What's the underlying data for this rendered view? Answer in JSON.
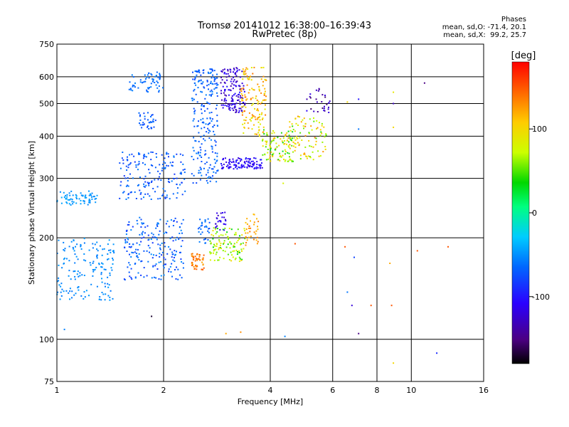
{
  "header": {
    "title": "Tromsø 20141012 16:38:00–16:39:43",
    "subtitle": "RwPretec (8p)"
  },
  "stats": {
    "heading": "Phases",
    "line_o": "mean, sd,O: -71.4, 20.1",
    "line_x": "mean, sd,X:  99.2, 25.7"
  },
  "chart_data": {
    "type": "scatter",
    "xlabel": "Frequency [MHz]",
    "ylabel": "Stationary phase Virtual Height [km]",
    "xscale": "log",
    "yscale": "log",
    "xlim": [
      1,
      16
    ],
    "ylim": [
      75,
      750
    ],
    "x_ticks": [
      1,
      2,
      4,
      6,
      8,
      10,
      16
    ],
    "x_tick_labels": [
      "1",
      "2",
      "4",
      "6",
      "8",
      "10",
      "16"
    ],
    "y_ticks": [
      75,
      100,
      200,
      300,
      400,
      500,
      600,
      750
    ],
    "y_tick_labels": [
      "75",
      "100",
      "200",
      "300",
      "400",
      "500",
      "600",
      "750"
    ],
    "grid": true,
    "colorbar": {
      "label": "[deg]",
      "range": [
        -180,
        180
      ],
      "ticks": [
        100,
        0,
        -100
      ],
      "tick_labels": [
        "100",
        "0",
        "-100"
      ]
    },
    "clusters": [
      {
        "freq": [
          1.0,
          1.3
        ],
        "height": [
          250,
          275
        ],
        "phase": [
          -55,
          -40
        ],
        "n": 70
      },
      {
        "freq": [
          1.0,
          1.45
        ],
        "height": [
          130,
          200
        ],
        "phase": [
          -60,
          -45
        ],
        "n": 160
      },
      {
        "freq": [
          1.55,
          2.3
        ],
        "height": [
          150,
          230
        ],
        "phase": [
          -85,
          -50
        ],
        "n": 200
      },
      {
        "freq": [
          1.5,
          2.3
        ],
        "height": [
          260,
          360
        ],
        "phase": [
          -85,
          -55
        ],
        "n": 170
      },
      {
        "freq": [
          1.6,
          2.0
        ],
        "height": [
          540,
          620
        ],
        "phase": [
          -70,
          -55
        ],
        "n": 60
      },
      {
        "freq": [
          1.7,
          1.9
        ],
        "height": [
          420,
          470
        ],
        "phase": [
          -80,
          -60
        ],
        "n": 35
      },
      {
        "freq": [
          2.4,
          2.85
        ],
        "height": [
          290,
          640
        ],
        "phase": [
          -80,
          -55
        ],
        "n": 230
      },
      {
        "freq": [
          2.9,
          3.4
        ],
        "height": [
          470,
          640
        ],
        "phase": [
          -140,
          -100
        ],
        "n": 140
      },
      {
        "freq": [
          3.3,
          3.9
        ],
        "height": [
          400,
          640
        ],
        "phase": [
          80,
          140
        ],
        "n": 140
      },
      {
        "freq": [
          2.9,
          3.8
        ],
        "height": [
          320,
          345
        ],
        "phase": [
          -120,
          -95
        ],
        "n": 110
      },
      {
        "freq": [
          3.8,
          4.7
        ],
        "height": [
          335,
          420
        ],
        "phase": [
          30,
          120
        ],
        "n": 110
      },
      {
        "freq": [
          4.5,
          5.8
        ],
        "height": [
          340,
          460
        ],
        "phase": [
          40,
          140
        ],
        "n": 90
      },
      {
        "freq": [
          5.0,
          5.9
        ],
        "height": [
          470,
          560
        ],
        "phase": [
          -160,
          -110
        ],
        "n": 30
      },
      {
        "freq": [
          2.4,
          2.6
        ],
        "height": [
          160,
          180
        ],
        "phase": [
          120,
          150
        ],
        "n": 50
      },
      {
        "freq": [
          2.7,
          3.4
        ],
        "height": [
          170,
          215
        ],
        "phase": [
          30,
          100
        ],
        "n": 110
      },
      {
        "freq": [
          2.8,
          3.0
        ],
        "height": [
          210,
          240
        ],
        "phase": [
          -130,
          -100
        ],
        "n": 25
      },
      {
        "freq": [
          2.5,
          2.7
        ],
        "height": [
          190,
          230
        ],
        "phase": [
          -75,
          -55
        ],
        "n": 30
      },
      {
        "freq": [
          3.4,
          3.7
        ],
        "height": [
          190,
          235
        ],
        "phase": [
          110,
          140
        ],
        "n": 35
      }
    ],
    "outliers": [
      {
        "f": 1.05,
        "h": 107,
        "p": -55
      },
      {
        "f": 1.85,
        "h": 117,
        "p": -170
      },
      {
        "f": 3.0,
        "h": 104,
        "p": 120
      },
      {
        "f": 3.3,
        "h": 105,
        "p": 130
      },
      {
        "f": 4.4,
        "h": 102,
        "p": -55
      },
      {
        "f": 4.7,
        "h": 192,
        "p": 150
      },
      {
        "f": 4.35,
        "h": 290,
        "p": 80
      },
      {
        "f": 6.5,
        "h": 188,
        "p": 150
      },
      {
        "f": 6.6,
        "h": 138,
        "p": -60
      },
      {
        "f": 6.8,
        "h": 126,
        "p": -120
      },
      {
        "f": 7.1,
        "h": 104,
        "p": -150
      },
      {
        "f": 7.7,
        "h": 126,
        "p": 150
      },
      {
        "f": 8.8,
        "h": 126,
        "p": 150
      },
      {
        "f": 8.7,
        "h": 168,
        "p": 120
      },
      {
        "f": 10.4,
        "h": 183,
        "p": 150
      },
      {
        "f": 12.7,
        "h": 188,
        "p": 150
      },
      {
        "f": 11.8,
        "h": 91,
        "p": -90
      },
      {
        "f": 10.9,
        "h": 575,
        "p": -150
      },
      {
        "f": 7.1,
        "h": 515,
        "p": -100
      },
      {
        "f": 6.6,
        "h": 505,
        "p": 100
      },
      {
        "f": 8.9,
        "h": 500,
        "p": -130
      },
      {
        "f": 8.9,
        "h": 540,
        "p": 90
      },
      {
        "f": 8.9,
        "h": 425,
        "p": 100
      },
      {
        "f": 7.1,
        "h": 420,
        "p": -60
      },
      {
        "f": 8.9,
        "h": 85,
        "p": 100
      },
      {
        "f": 6.9,
        "h": 175,
        "p": -80
      }
    ]
  }
}
